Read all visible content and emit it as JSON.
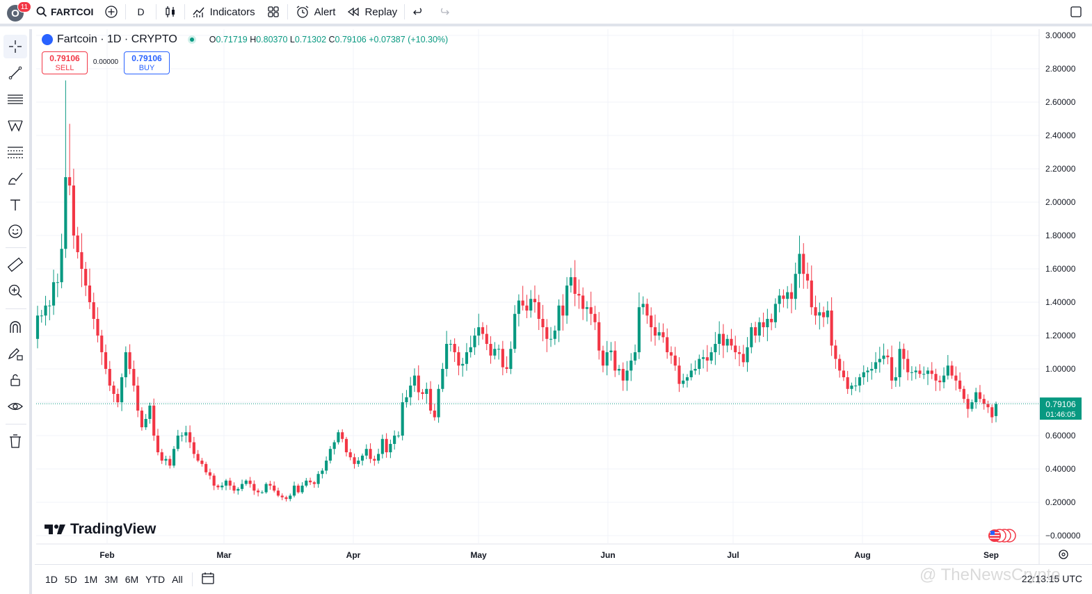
{
  "topbar": {
    "notification_count": "11",
    "avatar_letter": "O",
    "symbol": "FARTCOI",
    "interval": "D",
    "indicators_label": "Indicators",
    "alert_label": "Alert",
    "replay_label": "Replay"
  },
  "legend": {
    "title": "Fartcoin · 1D · CRYPTO",
    "o_label": "O",
    "o_value": "0.71719",
    "h_label": "H",
    "h_value": "0.80370",
    "l_label": "L",
    "l_value": "0.71302",
    "c_label": "C",
    "c_value": "0.79106",
    "change": "+0.07387 (+10.30%)"
  },
  "trade": {
    "sell_price": "0.79106",
    "sell_label": "SELL",
    "spread": "0.00000",
    "buy_price": "0.79106",
    "buy_label": "BUY"
  },
  "brand": {
    "logo_text": "TradingView"
  },
  "bottombar": {
    "ranges": [
      "1D",
      "5D",
      "1M",
      "3M",
      "6M",
      "YTD",
      "All"
    ],
    "time": "22:13:15 UTC"
  },
  "watermark": "@ TheNewsCrypto",
  "price_label": {
    "price": "0.79106",
    "countdown": "01:46:05"
  },
  "colors": {
    "up": "#089981",
    "down": "#f23645",
    "grid": "#f0f3fa"
  },
  "chart_data": {
    "type": "candlestick",
    "title": "Fartcoin · 1D · CRYPTO",
    "x_ticks": [
      "Feb",
      "Mar",
      "Apr",
      "May",
      "Jun",
      "Jul",
      "Aug",
      "Sep"
    ],
    "y_ticks": [
      "3.00000",
      "2.80000",
      "2.60000",
      "2.40000",
      "2.20000",
      "2.00000",
      "1.80000",
      "1.60000",
      "1.40000",
      "1.20000",
      "1.00000",
      "0.80000",
      "0.60000",
      "0.40000",
      "0.20000",
      "−0.00000"
    ],
    "ylim": [
      -0.02,
      3.02
    ],
    "last_price": 0.79106,
    "closes": [
      1.32,
      1.32,
      1.38,
      1.38,
      1.52,
      1.52,
      1.72,
      2.15,
      2.1,
      1.8,
      1.7,
      1.6,
      1.5,
      1.4,
      1.3,
      1.2,
      1.1,
      1.0,
      0.9,
      0.85,
      0.8,
      0.95,
      1.1,
      1.0,
      0.9,
      0.75,
      0.65,
      0.7,
      0.78,
      0.6,
      0.5,
      0.45,
      0.46,
      0.42,
      0.52,
      0.6,
      0.6,
      0.62,
      0.56,
      0.49,
      0.45,
      0.43,
      0.38,
      0.36,
      0.3,
      0.29,
      0.3,
      0.33,
      0.3,
      0.27,
      0.28,
      0.31,
      0.33,
      0.31,
      0.27,
      0.26,
      0.26,
      0.31,
      0.3,
      0.27,
      0.24,
      0.23,
      0.22,
      0.24,
      0.3,
      0.26,
      0.3,
      0.33,
      0.32,
      0.31,
      0.37,
      0.39,
      0.45,
      0.52,
      0.56,
      0.62,
      0.58,
      0.5,
      0.47,
      0.43,
      0.45,
      0.48,
      0.52,
      0.46,
      0.45,
      0.49,
      0.58,
      0.5,
      0.55,
      0.6,
      0.6,
      0.8,
      0.83,
      0.9,
      0.96,
      0.86,
      0.85,
      0.88,
      0.75,
      0.71,
      0.88,
      1.0,
      1.15,
      1.15,
      1.1,
      1.02,
      1.03,
      1.1,
      1.13,
      1.2,
      1.25,
      1.21,
      1.15,
      1.08,
      1.12,
      1.12,
      1.01,
      1.0,
      1.12,
      1.33,
      1.41,
      1.38,
      1.35,
      1.42,
      1.4,
      1.3,
      1.25,
      1.18,
      1.18,
      1.23,
      1.38,
      1.32,
      1.5,
      1.55,
      1.45,
      1.44,
      1.36,
      1.37,
      1.33,
      1.28,
      1.11,
      1.02,
      1.1,
      1.11,
      0.99,
      1.0,
      0.93,
      0.99,
      1.05,
      1.1,
      1.37,
      1.39,
      1.32,
      1.25,
      1.2,
      1.22,
      1.19,
      1.1,
      1.08,
      1.02,
      0.91,
      0.93,
      0.95,
      0.99,
      1.0,
      1.06,
      1.07,
      1.05,
      1.1,
      1.15,
      1.21,
      1.14,
      1.18,
      1.14,
      1.1,
      1.09,
      1.04,
      1.13,
      1.25,
      1.2,
      1.28,
      1.25,
      1.3,
      1.28,
      1.39,
      1.44,
      1.42,
      1.46,
      1.42,
      1.57,
      1.69,
      1.57,
      1.53,
      1.37,
      1.32,
      1.34,
      1.31,
      1.35,
      1.14,
      1.06,
      0.99,
      0.95,
      0.88,
      0.9,
      0.9,
      0.95,
      0.98,
      0.99,
      1.0,
      1.04,
      1.06,
      1.08,
      1.07,
      0.93,
      0.95,
      1.12,
      1.06,
      0.98,
      0.98,
      0.99,
      0.97,
      0.97,
      0.99,
      0.97,
      0.93,
      0.92,
      0.96,
      1.02,
      0.96,
      0.93,
      0.88,
      0.82,
      0.76,
      0.8,
      0.86,
      0.82,
      0.79,
      0.77,
      0.71,
      0.79
    ]
  }
}
